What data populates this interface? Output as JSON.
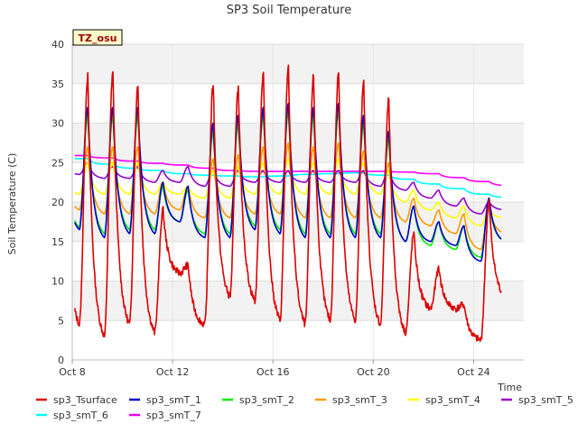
{
  "chart_data": {
    "type": "line",
    "title": "SP3 Soil Temperature",
    "xlabel": "Time",
    "ylabel": "Soil Temperature (C)",
    "badge": "TZ_osu",
    "ylim": [
      0,
      40
    ],
    "xlim": [
      0,
      18
    ],
    "x_unit": "days since Oct 8",
    "yticks": [
      0,
      5,
      10,
      15,
      20,
      25,
      30,
      35,
      40
    ],
    "xticks": [
      {
        "pos": 0,
        "label": "Oct 8"
      },
      {
        "pos": 4,
        "label": "Oct 12"
      },
      {
        "pos": 8,
        "label": "Oct 16"
      },
      {
        "pos": 12,
        "label": "Oct 20"
      },
      {
        "pos": 16,
        "label": "Oct 24"
      }
    ],
    "grid": true,
    "legend_position": "bottom",
    "days": [
      0,
      1,
      2,
      3,
      4,
      5,
      6,
      7,
      8,
      9,
      10,
      11,
      12,
      13,
      14,
      15,
      16,
      17
    ],
    "series": [
      {
        "name": "sp3_Tsurface",
        "color": "#dd0000",
        "mins": [
          4.5,
          3.0,
          4.5,
          3.5,
          11.0,
          4.5,
          8.0,
          7.5,
          5.0,
          4.5,
          5.0,
          5.0,
          4.5,
          3.5,
          6.5,
          6.5,
          2.5,
          8.0
        ],
        "maxs": [
          36.0,
          36.5,
          35.0,
          19.0,
          12.0,
          35.0,
          34.5,
          36.5,
          37.0,
          36.0,
          36.5,
          35.5,
          33.0,
          16.0,
          11.5,
          7.0,
          20.0,
          8.5
        ]
      },
      {
        "name": "sp3_smT_1",
        "color": "#0000cc",
        "mins": [
          16.5,
          15.5,
          16.0,
          16.0,
          17.5,
          15.5,
          15.5,
          16.5,
          16.0,
          15.5,
          15.5,
          15.5,
          15.5,
          15.0,
          15.0,
          14.5,
          12.5,
          15.0
        ],
        "maxs": [
          32.0,
          32.0,
          32.0,
          22.5,
          22.0,
          30.0,
          31.0,
          32.0,
          32.5,
          32.0,
          32.5,
          31.0,
          29.0,
          19.5,
          17.5,
          17.0,
          20.5,
          15.0
        ]
      },
      {
        "name": "sp3_smT_2",
        "color": "#00ee00",
        "mins": [
          16.8,
          16.0,
          16.5,
          16.5,
          17.5,
          16.0,
          16.0,
          17.0,
          16.5,
          16.0,
          16.0,
          16.0,
          16.0,
          15.0,
          14.5,
          14.0,
          13.0,
          15.0
        ],
        "maxs": [
          31.0,
          31.0,
          31.0,
          22.0,
          21.5,
          29.0,
          30.0,
          31.0,
          31.5,
          31.0,
          31.5,
          30.0,
          28.0,
          19.5,
          17.5,
          17.0,
          20.0,
          15.0
        ]
      },
      {
        "name": "sp3_smT_3",
        "color": "#ff9900",
        "mins": [
          19.0,
          18.5,
          18.5,
          18.5,
          19.0,
          18.0,
          18.0,
          18.5,
          18.5,
          18.0,
          18.0,
          18.0,
          18.0,
          17.5,
          17.0,
          16.0,
          14.0,
          16.0
        ],
        "maxs": [
          27.0,
          27.0,
          27.0,
          22.5,
          22.0,
          25.5,
          26.0,
          27.0,
          27.5,
          27.0,
          27.5,
          26.5,
          25.0,
          20.5,
          19.0,
          18.5,
          19.5,
          17.0
        ]
      },
      {
        "name": "sp3_smT_4",
        "color": "#ffff00",
        "mins": [
          21.0,
          21.0,
          21.0,
          21.0,
          21.0,
          20.5,
          20.5,
          21.0,
          21.0,
          21.0,
          21.0,
          21.0,
          21.0,
          20.0,
          19.0,
          18.0,
          17.0,
          18.0
        ],
        "maxs": [
          25.0,
          25.0,
          25.0,
          22.5,
          22.0,
          24.0,
          24.5,
          25.0,
          25.5,
          25.0,
          25.5,
          25.0,
          24.0,
          21.5,
          20.0,
          19.5,
          19.0,
          18.5
        ]
      },
      {
        "name": "sp3_smT_5",
        "color": "#9900cc",
        "mins": [
          23.5,
          23.0,
          23.0,
          22.5,
          22.5,
          22.0,
          22.0,
          22.5,
          22.5,
          22.5,
          22.5,
          22.5,
          22.0,
          21.5,
          20.5,
          19.5,
          18.5,
          19.0
        ],
        "maxs": [
          25.0,
          24.5,
          24.5,
          24.0,
          24.5,
          24.0,
          24.0,
          24.0,
          24.0,
          24.0,
          24.0,
          24.0,
          24.0,
          22.5,
          21.5,
          20.5,
          20.0,
          19.0
        ]
      },
      {
        "name": "sp3_smT_6",
        "color": "#00ffff",
        "mins": [
          25.5,
          24.8,
          24.3,
          24.0,
          23.6,
          23.4,
          23.3,
          23.2,
          23.3,
          23.5,
          23.6,
          23.7,
          23.4,
          22.9,
          22.3,
          21.7,
          21.0,
          20.6
        ],
        "maxs": [
          25.5,
          24.8,
          24.3,
          24.0,
          23.6,
          23.4,
          23.3,
          23.2,
          23.3,
          23.5,
          23.6,
          23.7,
          23.4,
          22.9,
          22.3,
          21.7,
          21.0,
          20.6
        ]
      },
      {
        "name": "sp3_smT_7",
        "color": "#ff00ff",
        "mins": [
          25.9,
          25.6,
          25.2,
          24.9,
          24.7,
          24.3,
          24.0,
          23.9,
          23.9,
          23.9,
          23.9,
          23.9,
          23.9,
          23.8,
          23.6,
          23.1,
          22.6,
          22.1
        ],
        "maxs": [
          25.9,
          25.6,
          25.2,
          24.9,
          24.7,
          24.3,
          24.0,
          23.9,
          23.9,
          23.9,
          23.9,
          23.9,
          23.9,
          23.8,
          23.6,
          23.1,
          22.6,
          22.1
        ]
      }
    ]
  }
}
